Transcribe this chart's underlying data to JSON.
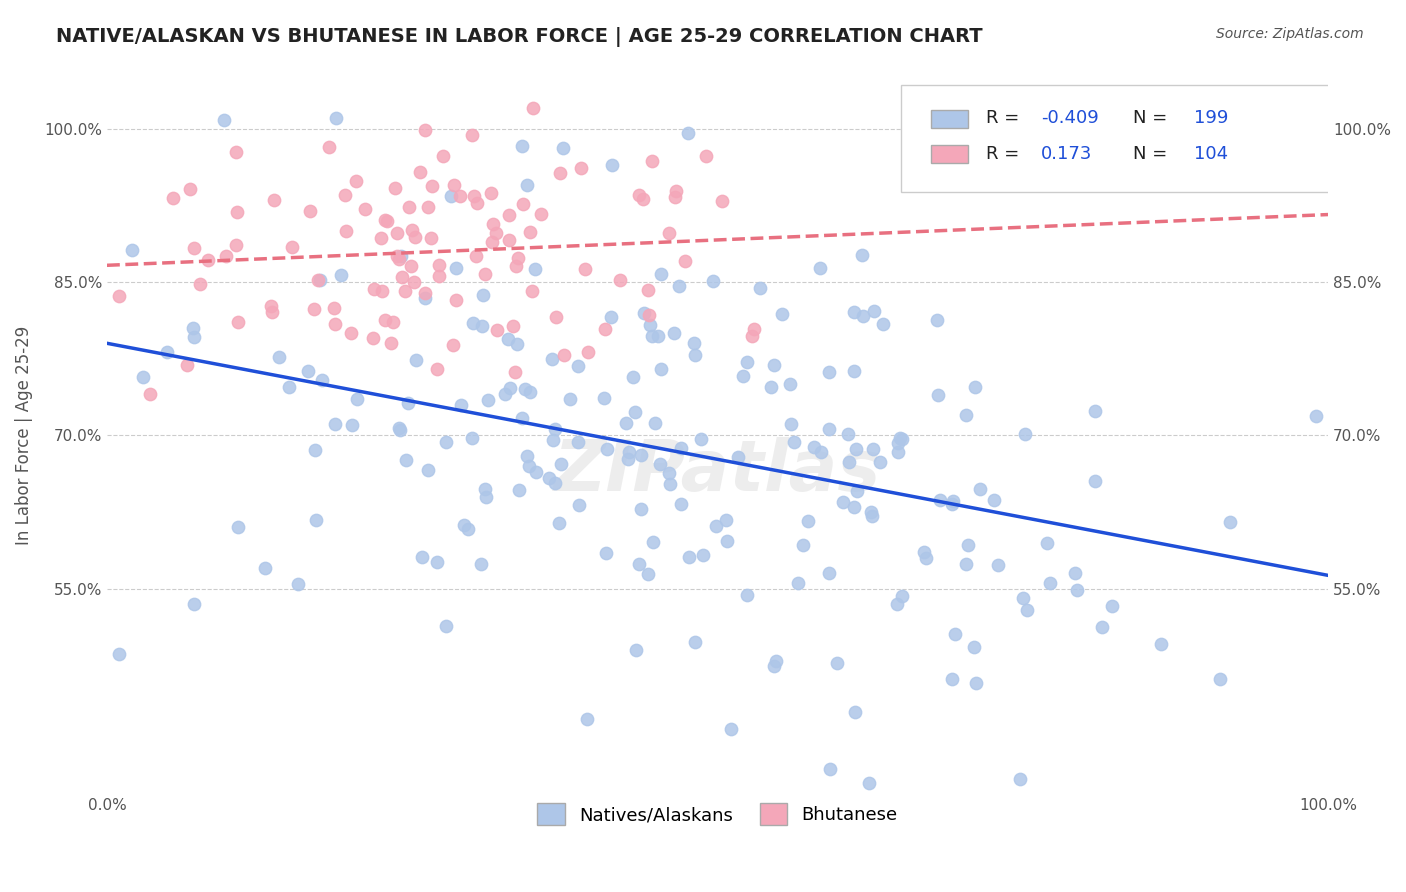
{
  "title": "NATIVE/ALASKAN VS BHUTANESE IN LABOR FORCE | AGE 25-29 CORRELATION CHART",
  "source": "Source: ZipAtlas.com",
  "xlabel": "",
  "ylabel": "In Labor Force | Age 25-29",
  "xlim": [
    0.0,
    1.0
  ],
  "ylim": [
    0.35,
    1.05
  ],
  "x_tick_labels": [
    "0.0%",
    "100.0%"
  ],
  "y_tick_labels": [
    "55.0%",
    "70.0%",
    "85.0%",
    "100.0%"
  ],
  "y_ticks": [
    0.55,
    0.7,
    0.85,
    1.0
  ],
  "r_blue": -0.409,
  "n_blue": 199,
  "r_pink": 0.173,
  "n_pink": 104,
  "blue_color": "#aec6e8",
  "pink_color": "#f4a7b9",
  "blue_line_color": "#1f4fd8",
  "pink_line_color": "#e87080",
  "scatter_alpha": 0.85,
  "marker_size": 80,
  "title_fontsize": 14,
  "label_fontsize": 12,
  "tick_fontsize": 11,
  "legend_fontsize": 13,
  "background_color": "#ffffff",
  "grid_color": "#cccccc",
  "watermark_text": "ZIPatlas",
  "blue_seed": 42,
  "pink_seed": 7,
  "blue_n": 199,
  "pink_n": 104
}
